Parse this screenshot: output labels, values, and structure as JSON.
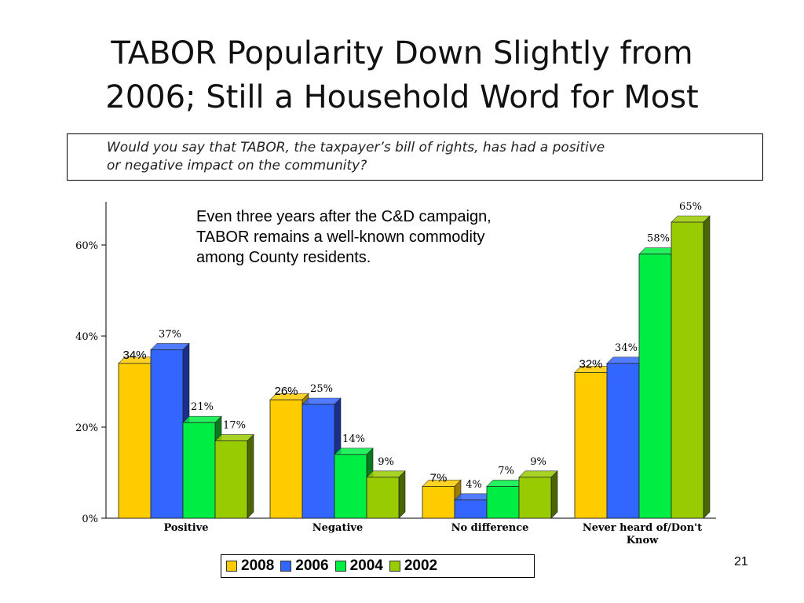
{
  "slide": {
    "title_line1": "TABOR Popularity Down Slightly from",
    "title_line2": "2006; Still a Household Word for Most",
    "question_line1": "Would you say that TABOR, the taxpayer’s bill of rights, has had a positive",
    "question_line2": "or negative impact on the community?",
    "note_line1": "Even three years after the C&D campaign,",
    "note_line2": "TABOR remains a well-known commodity",
    "note_line3": "among County residents.",
    "page_number": "21"
  },
  "chart_data": {
    "type": "bar",
    "categories": [
      "Positive",
      "Negative",
      "No difference",
      "Never heard of/Don't Know"
    ],
    "category_lines": [
      [
        "Positive"
      ],
      [
        "Negative"
      ],
      [
        "No difference"
      ],
      [
        "Never heard of/Don't",
        "Know"
      ]
    ],
    "series": [
      {
        "name": "2008",
        "values": [
          34,
          26,
          7,
          32
        ],
        "labels": [
          "34%",
          "26%",
          "7%",
          "32%"
        ],
        "color": "#FFCC00",
        "side_color": "#9E7E00"
      },
      {
        "name": "2006",
        "values": [
          37,
          25,
          4,
          34
        ],
        "labels": [
          "37%",
          "25%",
          "4%",
          "34%"
        ],
        "color": "#3366FF",
        "side_color": "#1A2F8A"
      },
      {
        "name": "2004",
        "values": [
          21,
          14,
          7,
          58
        ],
        "labels": [
          "21%",
          "14%",
          "7%",
          "58%"
        ],
        "color": "#00EE44",
        "side_color": "#0A7A20"
      },
      {
        "name": "2002",
        "values": [
          17,
          9,
          9,
          65
        ],
        "labels": [
          "17%",
          "9%",
          "9%",
          "65%"
        ],
        "color": "#99CC00",
        "side_color": "#4A6600"
      }
    ],
    "y_ticks": [
      0,
      20,
      40,
      60
    ],
    "y_tick_labels": [
      "0%",
      "20%",
      "40%",
      "60%"
    ],
    "ylim": [
      0,
      70
    ],
    "legend_position": "bottom",
    "grid": false
  }
}
